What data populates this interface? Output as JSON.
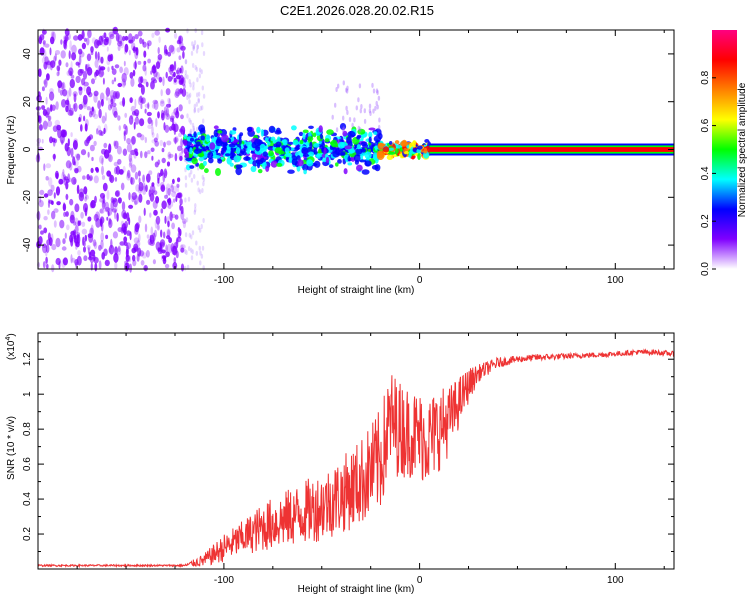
{
  "title": "C2E1.2026.028.20.02.R15",
  "chart_data": [
    {
      "type": "heatmap",
      "xlabel": "Height of straight line (km)",
      "ylabel": "Frequency (Hz)",
      "xlim": [
        -195,
        130
      ],
      "ylim": [
        -50,
        50
      ],
      "x_ticks": [
        -100,
        0,
        100
      ],
      "y_ticks": [
        -40,
        -20,
        0,
        20,
        40
      ],
      "colorbar": {
        "label": "Normalized spectral amplitude",
        "range": [
          0,
          1
        ],
        "ticks": [
          0.0,
          0.2,
          0.4,
          0.6,
          0.8
        ],
        "tick_labels": [
          "0.0",
          "0.2",
          "0.4",
          "0.6",
          "0.8"
        ],
        "colormap": [
          "#ffffff",
          "#8000ff",
          "#0000ff",
          "#00ffff",
          "#00ff00",
          "#ffff00",
          "#ff8000",
          "#ff0000",
          "#ff0080"
        ]
      },
      "regions": [
        {
          "x_range": [
            -195,
            -120
          ],
          "freq_range": [
            -50,
            50
          ],
          "amplitude": 0.1,
          "description": "broadband noise"
        },
        {
          "x_range": [
            -120,
            -20
          ],
          "freq_range": [
            -8,
            8
          ],
          "amplitude": 0.3
        },
        {
          "x_range": [
            -20,
            5
          ],
          "freq_range": [
            -3,
            3
          ],
          "amplitude": 0.6
        },
        {
          "x_range": [
            5,
            130
          ],
          "freq_range": [
            -1,
            1
          ],
          "amplitude": 0.9,
          "description": "steady carrier line"
        }
      ]
    },
    {
      "type": "line",
      "xlabel": "Height of straight line (km)",
      "ylabel": "SNR (10 * v/v)",
      "y_multiplier": "(x10",
      "y_multiplier_exp": "4",
      "y_multiplier_close": ")",
      "xlim": [
        -195,
        130
      ],
      "ylim": [
        0,
        1.35
      ],
      "x_ticks": [
        -100,
        0,
        100
      ],
      "y_ticks": [
        0.2,
        0.4,
        0.6,
        0.8,
        1.0,
        1.2
      ],
      "y_tick_labels": [
        "0.2",
        "0.4",
        "0.6",
        "0.8",
        "1",
        "1.2"
      ],
      "color": "#ee3333",
      "series": [
        {
          "name": "SNR",
          "x": [
            -195,
            -160,
            -130,
            -120,
            -110,
            -100,
            -90,
            -80,
            -70,
            -60,
            -50,
            -40,
            -30,
            -20,
            -15,
            -10,
            -5,
            0,
            5,
            10,
            15,
            20,
            25,
            30,
            40,
            50,
            60,
            80,
            100,
            110,
            120,
            130
          ],
          "y": [
            0.02,
            0.02,
            0.02,
            0.02,
            0.05,
            0.12,
            0.18,
            0.24,
            0.28,
            0.32,
            0.36,
            0.42,
            0.5,
            0.62,
            0.85,
            0.8,
            0.78,
            0.76,
            0.74,
            0.8,
            0.85,
            0.95,
            1.05,
            1.12,
            1.18,
            1.2,
            1.21,
            1.22,
            1.23,
            1.24,
            1.24,
            1.23
          ],
          "noise_amplitude": [
            0.005,
            0.005,
            0.005,
            0.005,
            0.04,
            0.08,
            0.1,
            0.14,
            0.16,
            0.18,
            0.2,
            0.22,
            0.25,
            0.3,
            0.3,
            0.28,
            0.26,
            0.26,
            0.26,
            0.24,
            0.2,
            0.15,
            0.1,
            0.05,
            0.03,
            0.02,
            0.02,
            0.015,
            0.015,
            0.015,
            0.015,
            0.015
          ]
        }
      ]
    }
  ]
}
